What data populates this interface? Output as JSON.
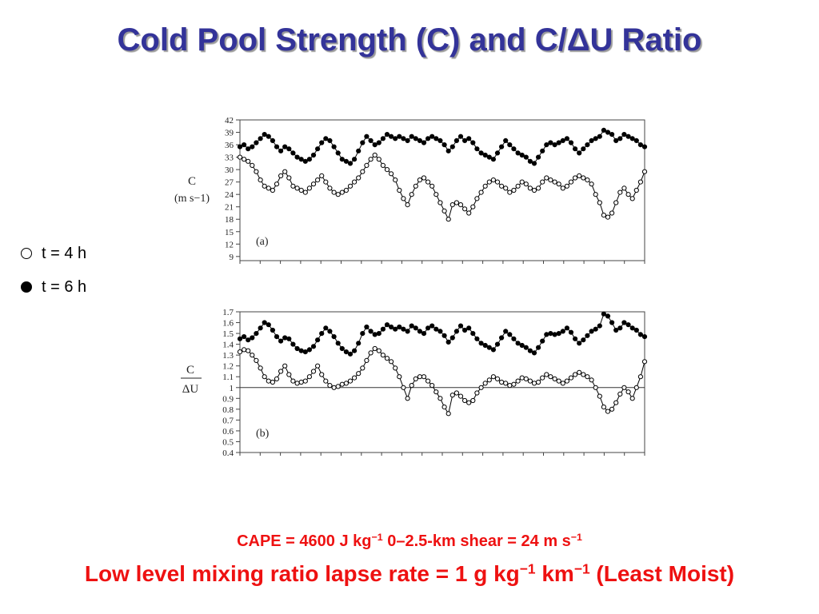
{
  "slide": {
    "title": "Cold Pool Strength (C) and C/ΔU Ratio",
    "legend": [
      {
        "label": "t = 4 h",
        "marker": "open-circle"
      },
      {
        "label": "t = 6 h",
        "marker": "filled-circle"
      }
    ],
    "footer": {
      "line1_parts": [
        "CAPE = 4600 J kg",
        "−1",
        " 0–2.5-km shear = 24 m s",
        "−1"
      ],
      "line2_parts": [
        "Low level mixing ratio lapse rate = 1 g kg",
        "−1",
        " km",
        "−1",
        " (Least Moist)"
      ]
    },
    "colors": {
      "title": "#333399",
      "footer": "#ee1111",
      "series": "#000000"
    }
  },
  "chart_data": [
    {
      "type": "scatter",
      "panel_label": "(a)",
      "ylabel": "C",
      "ylabel_unit": "(m s−1)",
      "yticks": [
        9,
        12,
        15,
        18,
        21,
        24,
        27,
        30,
        33,
        36,
        39,
        42
      ],
      "ylim": [
        8,
        42
      ],
      "xlim": [
        0,
        100
      ],
      "grid": false,
      "reference_line": null,
      "series": [
        {
          "name": "t = 4 h",
          "marker": "open",
          "values": [
            33,
            32.5,
            32,
            31,
            29.5,
            27.5,
            26,
            25.5,
            25,
            26.5,
            28.5,
            29.5,
            28,
            26,
            25.5,
            25,
            24.5,
            25.5,
            26.5,
            27.5,
            28.5,
            27,
            25.5,
            24.5,
            24,
            24.5,
            25,
            26,
            27,
            28,
            29.5,
            31,
            32.5,
            33.5,
            32.5,
            31,
            30,
            29,
            27.5,
            25,
            23,
            21.5,
            24,
            26,
            27.5,
            28,
            27,
            26,
            24,
            22,
            20,
            18,
            21.5,
            22,
            21.5,
            20.5,
            19.5,
            21,
            23,
            24.5,
            26,
            27,
            27.5,
            27,
            26,
            25.5,
            24.5,
            25,
            26,
            27,
            26.5,
            25.5,
            25,
            25.5,
            27,
            28,
            27.5,
            27,
            26.5,
            25.5,
            26,
            27,
            28,
            28.5,
            28,
            27.5,
            26.5,
            24,
            22,
            19,
            18.5,
            19.5,
            22,
            24.5,
            25.5,
            24,
            23,
            25,
            27,
            29.5
          ]
        },
        {
          "name": "t = 6 h",
          "marker": "filled",
          "values": [
            35.5,
            36,
            35,
            35.5,
            36.5,
            37.5,
            38.5,
            38,
            37,
            35.5,
            34.5,
            35.5,
            35,
            34,
            33,
            32.5,
            32,
            32.5,
            33.5,
            35,
            36.5,
            37.5,
            37,
            35.5,
            34,
            32.5,
            32,
            31.5,
            32.5,
            34.5,
            36.5,
            38,
            37,
            36,
            36.5,
            37.5,
            38.5,
            38,
            37.5,
            38,
            37.5,
            37,
            38,
            37.5,
            37,
            36.5,
            37.5,
            38,
            37.5,
            37,
            36,
            34.5,
            35.5,
            37,
            38,
            37,
            37.5,
            36.5,
            35,
            34,
            33.5,
            33,
            32.5,
            34,
            35.5,
            37,
            36,
            35,
            34,
            33.5,
            33,
            32,
            31.5,
            33,
            34.5,
            36,
            36.5,
            36,
            36.5,
            37,
            37.5,
            36.5,
            35,
            34,
            35,
            36,
            37,
            37.5,
            38,
            39.5,
            39,
            38.5,
            37,
            37.5,
            38.5,
            38,
            37.5,
            37,
            36,
            35.5
          ]
        }
      ]
    },
    {
      "type": "scatter",
      "panel_label": "(b)",
      "ylabel": "C",
      "ylabel_den": "ΔU",
      "yticks": [
        0.4,
        0.5,
        0.6,
        0.7,
        0.8,
        0.9,
        1,
        1.1,
        1.2,
        1.3,
        1.4,
        1.5,
        1.6,
        1.7
      ],
      "ylim": [
        0.4,
        1.7
      ],
      "xlim": [
        0,
        100
      ],
      "grid": false,
      "reference_line": 1,
      "series": [
        {
          "name": "t = 4 h",
          "marker": "open",
          "values": [
            1.33,
            1.35,
            1.34,
            1.3,
            1.25,
            1.18,
            1.1,
            1.06,
            1.05,
            1.08,
            1.15,
            1.2,
            1.12,
            1.06,
            1.04,
            1.05,
            1.06,
            1.1,
            1.15,
            1.2,
            1.12,
            1.06,
            1.02,
            1.0,
            1.01,
            1.03,
            1.04,
            1.06,
            1.09,
            1.13,
            1.18,
            1.25,
            1.32,
            1.36,
            1.34,
            1.3,
            1.27,
            1.24,
            1.18,
            1.1,
            1.0,
            0.9,
            1.02,
            1.08,
            1.1,
            1.1,
            1.06,
            1.02,
            0.96,
            0.9,
            0.82,
            0.76,
            0.93,
            0.95,
            0.92,
            0.88,
            0.86,
            0.88,
            0.95,
            1.0,
            1.04,
            1.07,
            1.1,
            1.08,
            1.05,
            1.04,
            1.02,
            1.03,
            1.06,
            1.09,
            1.08,
            1.06,
            1.04,
            1.05,
            1.09,
            1.12,
            1.1,
            1.08,
            1.06,
            1.04,
            1.06,
            1.09,
            1.12,
            1.14,
            1.12,
            1.1,
            1.07,
            1.0,
            0.92,
            0.82,
            0.78,
            0.8,
            0.86,
            0.94,
            1.0,
            0.96,
            0.9,
            1.0,
            1.1,
            1.24
          ]
        },
        {
          "name": "t = 6 h",
          "marker": "filled",
          "values": [
            1.45,
            1.47,
            1.44,
            1.46,
            1.5,
            1.55,
            1.6,
            1.58,
            1.53,
            1.47,
            1.43,
            1.46,
            1.45,
            1.4,
            1.36,
            1.34,
            1.33,
            1.35,
            1.38,
            1.44,
            1.5,
            1.55,
            1.52,
            1.47,
            1.41,
            1.36,
            1.33,
            1.31,
            1.34,
            1.41,
            1.5,
            1.56,
            1.52,
            1.49,
            1.5,
            1.54,
            1.58,
            1.56,
            1.54,
            1.56,
            1.54,
            1.52,
            1.57,
            1.55,
            1.52,
            1.5,
            1.55,
            1.57,
            1.54,
            1.52,
            1.48,
            1.42,
            1.46,
            1.52,
            1.57,
            1.53,
            1.55,
            1.5,
            1.45,
            1.41,
            1.39,
            1.37,
            1.35,
            1.4,
            1.46,
            1.52,
            1.49,
            1.45,
            1.41,
            1.39,
            1.37,
            1.34,
            1.32,
            1.37,
            1.43,
            1.49,
            1.5,
            1.49,
            1.5,
            1.52,
            1.55,
            1.51,
            1.45,
            1.41,
            1.44,
            1.48,
            1.52,
            1.54,
            1.57,
            1.68,
            1.66,
            1.6,
            1.53,
            1.55,
            1.6,
            1.58,
            1.55,
            1.53,
            1.49,
            1.47
          ]
        }
      ]
    }
  ]
}
